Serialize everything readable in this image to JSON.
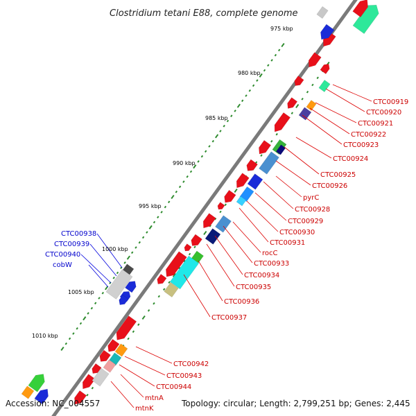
{
  "title": "Clostridium tetani E88, complete genome",
  "accession": "Accession: NC_004557",
  "topology": "Topology: circular; Length: 2,799,251 bp; Genes: 2,445",
  "scale_labels": [
    "975 kbp",
    "980 kbp",
    "985 kbp",
    "990 kbp",
    "995 kbp",
    "1000 kbp",
    "1005 kbp",
    "1010 kbp"
  ],
  "colors": {
    "backbone": "#7a7a7a",
    "ticks": "#2e8b2e",
    "gene_red": "#e8101a",
    "label_red": "#cc0000",
    "label_blue": "#0000cc",
    "gene_blue": "#1020e0"
  },
  "labels_right": [
    "CTC00919",
    "CTC00920",
    "CTC00921",
    "CTC00922",
    "CTC00923",
    "CTC00924",
    "CTC00925",
    "CTC00926",
    "pyrC",
    "CTC00928",
    "CTC00929",
    "CTC00930",
    "CTC00931",
    "rocC",
    "CTC00933",
    "CTC00934",
    "CTC00935",
    "CTC00936",
    "CTC00937",
    "CTC00942",
    "CTC00943",
    "CTC00944",
    "mtnA",
    "mtnK"
  ],
  "labels_left": [
    "CTC00938",
    "CTC00939",
    "CTC00940",
    "cobW"
  ]
}
